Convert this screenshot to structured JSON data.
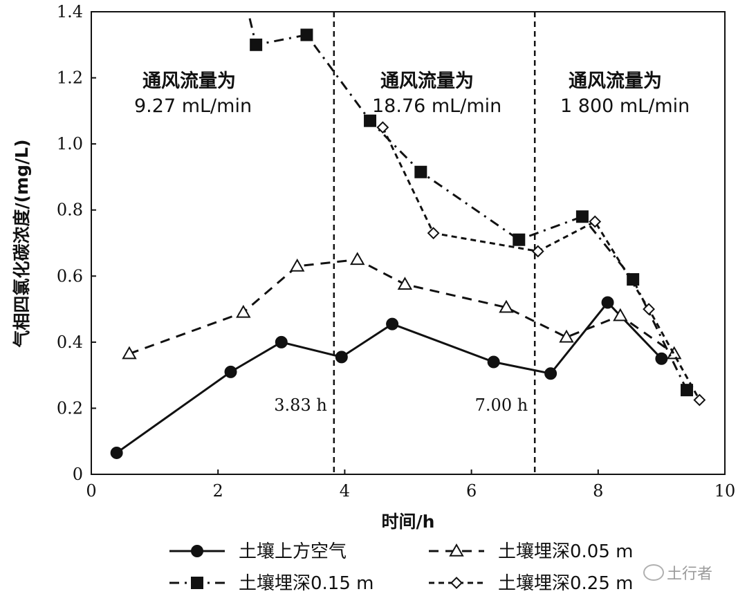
{
  "chart_data": {
    "type": "line",
    "xlabel": "时间/h",
    "ylabel": "气相四氯化碳浓度/(mg/L)",
    "xlim": [
      0,
      10
    ],
    "ylim": [
      0,
      1.4
    ],
    "xticks": [
      "0",
      "2",
      "4",
      "6",
      "8",
      "10"
    ],
    "yticks": [
      "0",
      "0.2",
      "0.4",
      "0.6",
      "0.8",
      "1.0",
      "1.2",
      "1.4"
    ],
    "vertical_lines": [
      {
        "x": 3.83,
        "label": "3.83 h"
      },
      {
        "x": 7.0,
        "label": "7.00 h"
      }
    ],
    "annotations": [
      {
        "title": "通风流量为",
        "value": "9.27 mL/min"
      },
      {
        "title": "通风流量为",
        "value": "18.76 mL/min"
      },
      {
        "title": "通风流量为",
        "value": "1 800 mL/min"
      }
    ],
    "legend_position": "bottom",
    "series": [
      {
        "name": "土壤上方空气",
        "marker": "filled-circle",
        "line": "solid",
        "x": [
          0.4,
          2.2,
          3.0,
          3.95,
          4.75,
          6.35,
          7.25,
          8.15,
          9.0
        ],
        "y": [
          0.065,
          0.31,
          0.4,
          0.355,
          0.455,
          0.34,
          0.305,
          0.52,
          0.35
        ]
      },
      {
        "name": "土壤埋深0.05 m",
        "marker": "open-triangle",
        "line": "dashed",
        "x": [
          0.6,
          2.4,
          3.25,
          4.2,
          4.95,
          6.55,
          7.5,
          8.35,
          9.2
        ],
        "y": [
          0.365,
          0.49,
          0.63,
          0.65,
          0.575,
          0.505,
          0.415,
          0.48,
          0.365
        ]
      },
      {
        "name": "土壤埋深0.15 m",
        "marker": "filled-square",
        "line": "dash-dot",
        "x": [
          2.5,
          2.6,
          3.4,
          4.4,
          5.2,
          6.75,
          7.75,
          8.55,
          9.4
        ],
        "y": [
          1.38,
          1.3,
          1.33,
          1.07,
          0.915,
          0.71,
          0.78,
          0.59,
          0.255
        ]
      },
      {
        "name": "土壤埋深0.25 m",
        "marker": "open-diamond",
        "line": "short-dashed",
        "x": [
          4.6,
          5.4,
          7.05,
          7.95,
          8.8,
          9.6
        ],
        "y": [
          1.05,
          0.73,
          0.675,
          0.765,
          0.5,
          0.225
        ]
      }
    ]
  },
  "watermark": "土行者"
}
